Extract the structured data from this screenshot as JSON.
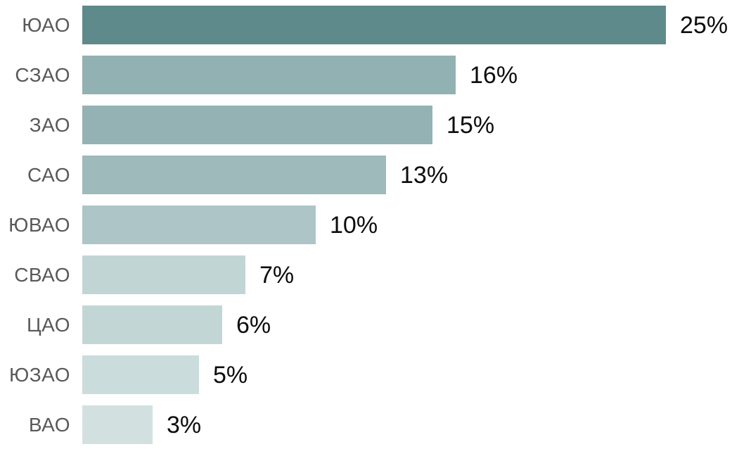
{
  "chart_data": {
    "type": "bar",
    "orientation": "horizontal",
    "title": "",
    "xlabel": "",
    "ylabel": "",
    "categories": [
      "ЮАО",
      "СЗАО",
      "ЗАО",
      "САО",
      "ЮВАО",
      "СВАО",
      "ЦАО",
      "ЮЗАО",
      "ВАО"
    ],
    "values": [
      25,
      16,
      15,
      13,
      10,
      7,
      6,
      5,
      3
    ],
    "value_labels": [
      "25%",
      "16%",
      "15%",
      "13%",
      "10%",
      "7%",
      "6%",
      "5%",
      "3%"
    ],
    "bar_colors": [
      "#5f8a8b",
      "#92b1b3",
      "#94b2b4",
      "#9ebabb",
      "#adc5c6",
      "#c1d5d5",
      "#c3d6d6",
      "#cbdcdc",
      "#d2e0e0"
    ],
    "xlim": [
      0,
      25
    ],
    "grid": false,
    "legend": false,
    "sorted": "descending",
    "colors": {
      "category_label": "#595959",
      "value_label": "#0d0d0d",
      "background": "#ffffff"
    }
  }
}
